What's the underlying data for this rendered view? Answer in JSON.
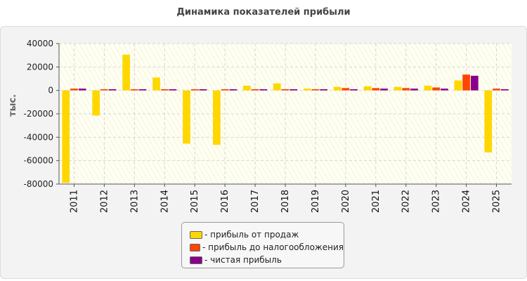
{
  "chart_data": {
    "type": "bar",
    "title": "Динамика показателей прибыли",
    "ylabel": "тыс.",
    "xlabel": "",
    "categories": [
      "2011",
      "2012",
      "2013",
      "2014",
      "2015",
      "2016",
      "2017",
      "2018",
      "2019",
      "2020",
      "2021",
      "2022",
      "2023",
      "2024",
      "2025"
    ],
    "ylim": [
      -80000,
      40000
    ],
    "yticks": [
      40000,
      20000,
      0,
      -20000,
      -40000,
      -60000,
      -80000
    ],
    "ytick_labels": [
      "40000",
      "20000",
      "0",
      "-20000",
      "-40000",
      "-60000",
      "-80000"
    ],
    "grid": true,
    "legend_position": "bottom-center",
    "series": [
      {
        "name": "- прибыль от продаж",
        "color": "#FFD700",
        "values": [
          -79000,
          -21500,
          30500,
          11000,
          -45500,
          -46500,
          4000,
          6000,
          1500,
          3000,
          3500,
          3000,
          4000,
          8500,
          -53000
        ]
      },
      {
        "name": "- прибыль до налогообложения",
        "color": "#FF4500",
        "values": [
          1500,
          1000,
          1000,
          1000,
          1000,
          1000,
          1000,
          1000,
          1000,
          2000,
          2000,
          2000,
          2500,
          13500,
          1500
        ]
      },
      {
        "name": "- чистая прибыль",
        "color": "#8B008B",
        "values": [
          1500,
          1000,
          1000,
          1000,
          1000,
          1000,
          1000,
          1000,
          1000,
          1000,
          1500,
          1500,
          1500,
          12500,
          1000
        ]
      }
    ]
  }
}
